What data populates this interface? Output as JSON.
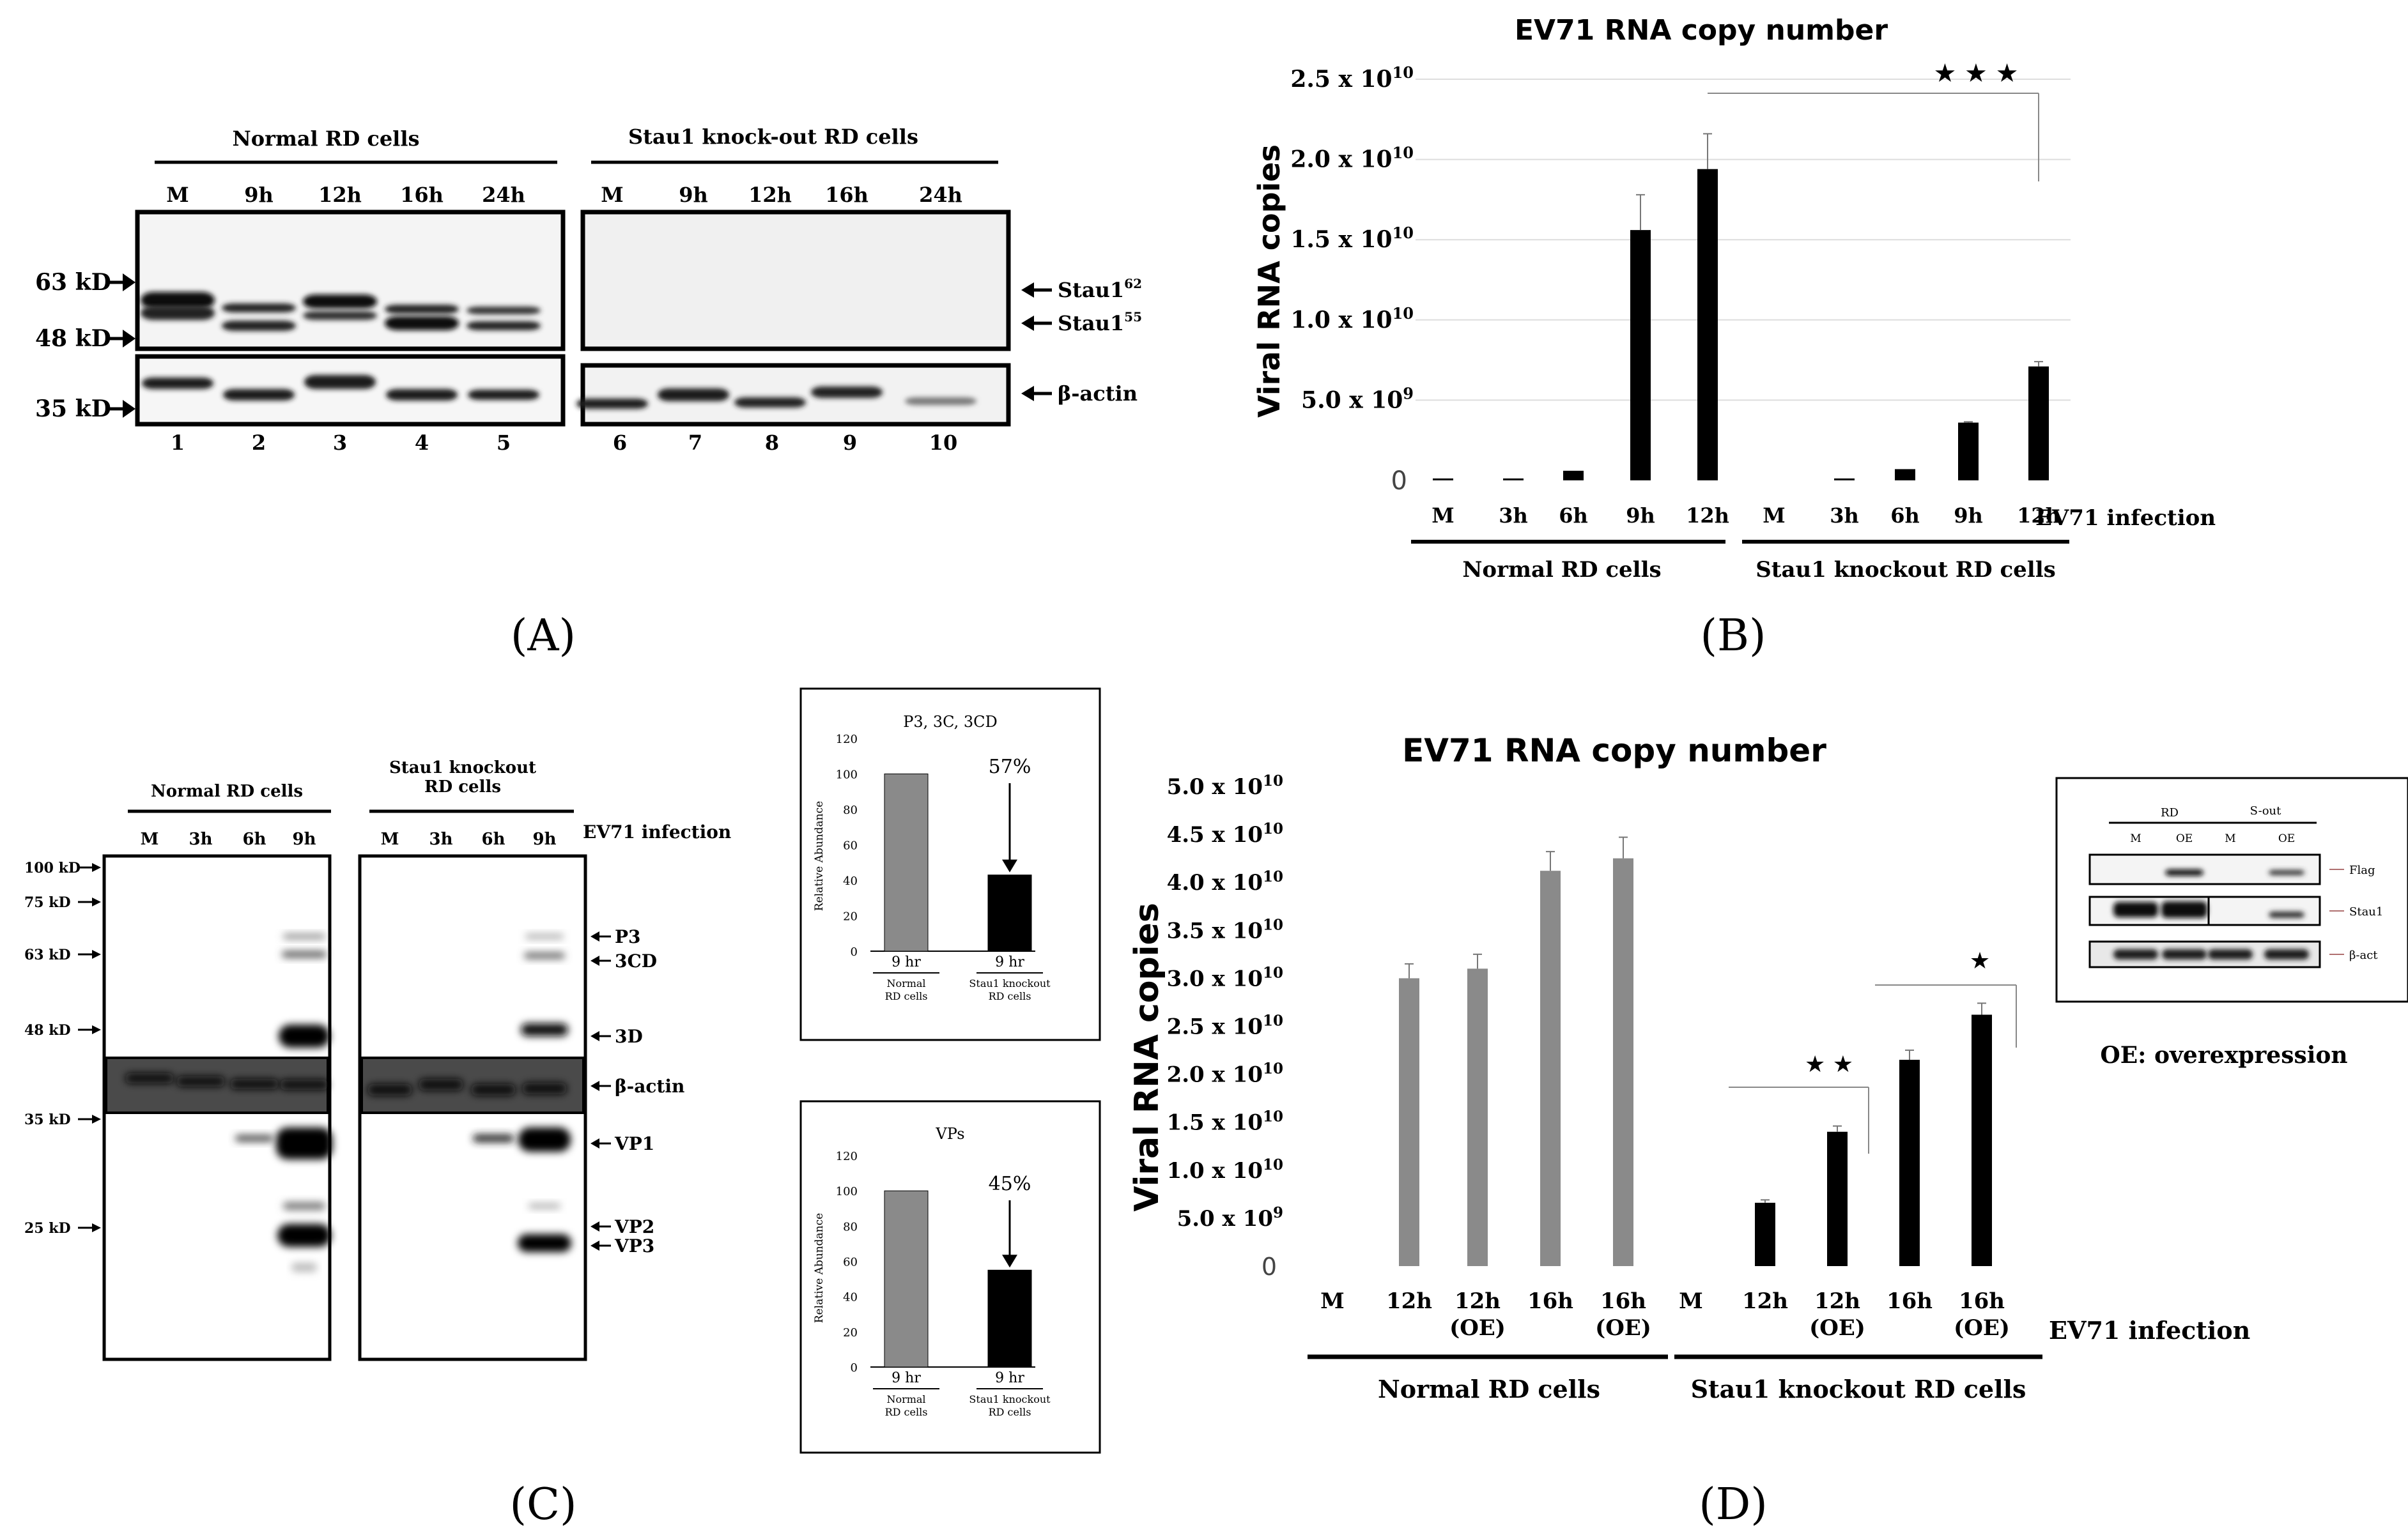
{
  "panels": {
    "A": {
      "letter": "(A)",
      "group_normal": "Normal RD cells",
      "group_ko": "Stau1 knock-out RD cells",
      "lanes_normal": [
        "M",
        "9h",
        "12h",
        "16h",
        "24h"
      ],
      "lanes_ko": [
        "M",
        "9h",
        "12h",
        "16h",
        "24h"
      ],
      "mw_markers": [
        "63 kD",
        "48 kD",
        "35 kD"
      ],
      "band_labels": [
        {
          "base": "Stau1",
          "sup": "62"
        },
        {
          "base": "Stau1",
          "sup": "55"
        },
        {
          "base": "β-actin",
          "sup": ""
        }
      ],
      "lane_numbers": [
        "1",
        "2",
        "3",
        "4",
        "5",
        "6",
        "7",
        "8",
        "9",
        "10"
      ]
    },
    "B": {
      "letter": "(B)",
      "group_normal": "Normal RD cells",
      "group_ko": "Stau1 knockout  RD cells",
      "infection_label": "EV71 infection",
      "significance": "★ ★ ★"
    },
    "C": {
      "letter": "(C)",
      "group_normal": "Normal RD cells",
      "group_ko_line1": "Stau1 knockout",
      "group_ko_line2": "RD cells",
      "infection_label": "EV71 infection",
      "lanes_normal": [
        "M",
        "3h",
        "6h",
        "9h"
      ],
      "lanes_ko": [
        "M",
        "3h",
        "6h",
        "9h"
      ],
      "mw_markers": [
        "100 kD",
        "75 kD",
        "63 kD",
        "48 kD",
        "35 kD",
        "25 kD"
      ],
      "band_labels": [
        "P3",
        "3CD",
        "3D",
        "β-actin",
        "VP1",
        "VP2",
        "VP3"
      ]
    },
    "D": {
      "letter": "(D)",
      "group_normal": "Normal RD cells",
      "group_ko": "Stau1 knockout RD cells",
      "infection_label": "EV71 infection",
      "sig_double": "★ ★",
      "sig_single": "★",
      "legend_note": "OE: overexpression",
      "inset": {
        "group_rd": "RD",
        "group_sout": "S-out",
        "lanes": [
          "M",
          "OE",
          "M",
          "OE"
        ],
        "rows": [
          "Flag",
          "Stau1",
          "β-act"
        ]
      }
    }
  },
  "chart_data": [
    {
      "id": "B",
      "type": "bar",
      "title": "EV71 RNA copy number",
      "ylabel": "Viral RNA copies",
      "xlabel": "EV71 infection",
      "categories": [
        "M",
        "3h",
        "6h",
        "9h",
        "12h",
        "M",
        "3h",
        "6h",
        "9h",
        "12h"
      ],
      "groups": [
        "Normal RD cells",
        "Normal RD cells",
        "Normal RD cells",
        "Normal RD cells",
        "Normal RD cells",
        "Stau1 knockout  RD cells",
        "Stau1 knockout  RD cells",
        "Stau1 knockout  RD cells",
        "Stau1 knockout  RD cells",
        "Stau1 knockout  RD cells"
      ],
      "values": [
        20000000.0,
        50000000.0,
        600000000.0,
        15600000000.0,
        19400000000.0,
        0,
        50000000.0,
        700000000.0,
        3600000000.0,
        7100000000.0
      ],
      "errors": [
        0,
        0,
        0,
        2200000000.0,
        2200000000.0,
        0,
        0,
        0,
        50000000.0,
        300000000.0
      ],
      "bar_color": "#000000",
      "ylim": [
        0,
        25000000000.0
      ],
      "yticks": [
        {
          "label": "0",
          "sup": "",
          "value": 0
        },
        {
          "label": "5.0 x 10",
          "sup": "9",
          "value": 5000000000.0
        },
        {
          "label": "1.0 x 10",
          "sup": "10",
          "value": 10000000000.0
        },
        {
          "label": "1.5 x 10",
          "sup": "10",
          "value": 15000000000.0
        },
        {
          "label": "2.0 x 10",
          "sup": "10",
          "value": 20000000000.0
        },
        {
          "label": "2.5 x 10",
          "sup": "10",
          "value": 25000000000.0
        }
      ],
      "grid": true
    },
    {
      "id": "C1",
      "type": "bar",
      "title": "P3, 3C, 3CD",
      "ylabel": "Relative Abundance",
      "categories": [
        "9 hr",
        "9 hr"
      ],
      "groups": [
        "Normal RD cells",
        "Stau1 knockout RD cells"
      ],
      "values": [
        100,
        43
      ],
      "colors": [
        "#8a8a8a",
        "#000000"
      ],
      "annotation": "57%",
      "ylim": [
        0,
        120
      ],
      "yticks": [
        0,
        20,
        40,
        60,
        80,
        100,
        120
      ]
    },
    {
      "id": "C2",
      "type": "bar",
      "title": "VPs",
      "ylabel": "Relative Abundance",
      "categories": [
        "9 hr",
        "9 hr"
      ],
      "groups": [
        "Normal RD cells",
        "Stau1 knockout RD cells"
      ],
      "values": [
        100,
        55
      ],
      "colors": [
        "#8a8a8a",
        "#000000"
      ],
      "annotation": "45%",
      "ylim": [
        0,
        120
      ],
      "yticks": [
        0,
        20,
        40,
        60,
        80,
        100,
        120
      ]
    },
    {
      "id": "D",
      "type": "bar",
      "title": "EV71 RNA copy number",
      "ylabel": "Viral RNA copies",
      "xlabel": "EV71 infection",
      "categories": [
        "M",
        "12h",
        "12h (OE)",
        "16h",
        "16h (OE)",
        "M",
        "12h",
        "12h (OE)",
        "16h",
        "16h (OE)"
      ],
      "groups": [
        "Normal RD cells",
        "Normal RD cells",
        "Normal RD cells",
        "Normal RD cells",
        "Normal RD cells",
        "Stau1 knockout RD cells",
        "Stau1 knockout RD cells",
        "Stau1 knockout RD cells",
        "Stau1 knockout RD cells",
        "Stau1 knockout RD cells"
      ],
      "values": [
        0,
        30000000000.0,
        31000000000.0,
        41200000000.0,
        42500000000.0,
        0,
        6600000000.0,
        14000000000.0,
        21500000000.0,
        26200000000.0
      ],
      "errors": [
        0,
        1500000000.0,
        1500000000.0,
        2000000000.0,
        2200000000.0,
        0,
        300000000.0,
        600000000.0,
        1000000000.0,
        1200000000.0
      ],
      "colors": [
        "#8a8a8a",
        "#8a8a8a",
        "#8a8a8a",
        "#8a8a8a",
        "#8a8a8a",
        "#000000",
        "#000000",
        "#000000",
        "#000000",
        "#000000"
      ],
      "ylim": [
        0,
        50000000000.0
      ],
      "yticks": [
        {
          "label": "0",
          "sup": "",
          "value": 0
        },
        {
          "label": "5.0 x 10",
          "sup": "9",
          "value": 5000000000.0
        },
        {
          "label": "1.0 x 10",
          "sup": "10",
          "value": 10000000000.0
        },
        {
          "label": "1.5 x 10",
          "sup": "10",
          "value": 15000000000.0
        },
        {
          "label": "2.0 x 10",
          "sup": "10",
          "value": 20000000000.0
        },
        {
          "label": "2.5 x 10",
          "sup": "10",
          "value": 25000000000.0
        },
        {
          "label": "3.0 x 10",
          "sup": "10",
          "value": 30000000000.0
        },
        {
          "label": "3.5 x 10",
          "sup": "10",
          "value": 35000000000.0
        },
        {
          "label": "4.0 x 10",
          "sup": "10",
          "value": 40000000000.0
        },
        {
          "label": "4.5 x 10",
          "sup": "10",
          "value": 45000000000.0
        },
        {
          "label": "5.0 x 10",
          "sup": "10",
          "value": 50000000000.0
        }
      ],
      "grid": false
    }
  ]
}
